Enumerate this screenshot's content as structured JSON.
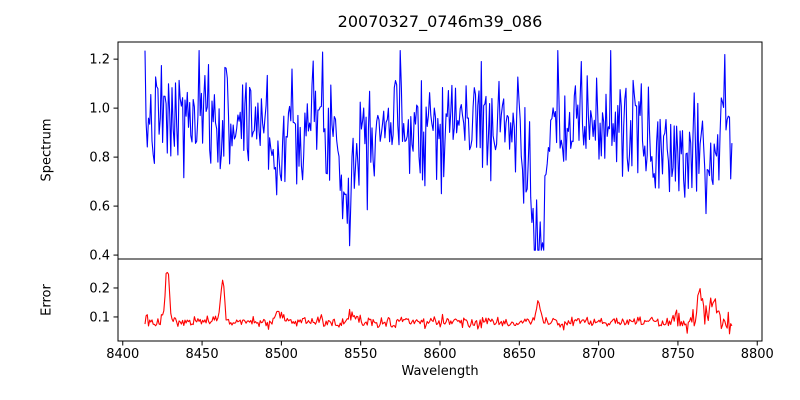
{
  "chart_data": {
    "type": "line",
    "title": "20070327_0746m39_086",
    "xlabel": "Wavelength",
    "xlim": [
      8397,
      8803
    ],
    "xticks": [
      8400,
      8450,
      8500,
      8550,
      8600,
      8650,
      8700,
      8750,
      8800
    ],
    "xtick_labels": [
      "8400",
      "8450",
      "8500",
      "8550",
      "8600",
      "8650",
      "8700",
      "8750",
      "8800"
    ],
    "legend": "none",
    "grid": false,
    "panels": [
      {
        "name": "spectrum",
        "ylabel": "Spectrum",
        "color": "#0000ff",
        "line_width": 1.1,
        "ylim": [
          0.384,
          1.27
        ],
        "yticks": [
          0.4,
          0.6,
          0.8,
          1.0,
          1.2
        ],
        "ytick_labels": [
          "0.4",
          "0.6",
          "0.8",
          "1.0",
          "1.2"
        ],
        "x_start": 8414,
        "x_end": 8784,
        "n_points": 500,
        "baseline": 0.95,
        "noise_std": 0.115,
        "seed": 7,
        "clip_min": 0.42,
        "clip_max": 1.235,
        "absorption_features": [
          {
            "center": 8498,
            "depth": 0.18,
            "width": 3
          },
          {
            "center": 8542,
            "depth": 0.3,
            "width": 4
          },
          {
            "center": 8662,
            "depth": 0.52,
            "width": 3.5
          },
          {
            "center": 8662,
            "depth": 0.1,
            "width": 12
          },
          {
            "center": 8745,
            "depth": 0.13,
            "width": 16
          },
          {
            "center": 8770,
            "depth": 0.18,
            "width": 2
          }
        ]
      },
      {
        "name": "error",
        "ylabel": "Error",
        "color": "#ff0000",
        "line_width": 1.1,
        "ylim": [
          0.017,
          0.3
        ],
        "yticks": [
          0.1,
          0.2
        ],
        "ytick_labels": [
          "0.1",
          "0.2"
        ],
        "x_start": 8414,
        "x_end": 8784,
        "n_points": 500,
        "baseline": 0.082,
        "noise_std": 0.01,
        "seed": 13,
        "clip_min": 0.042,
        "clip_max": 0.29,
        "noise_boost": {
          "from_x": 8748,
          "factor": 2.3
        },
        "spike_features": [
          {
            "center": 8428,
            "height": 0.2,
            "width": 1.2
          },
          {
            "center": 8463,
            "height": 0.14,
            "width": 1.2
          },
          {
            "center": 8498,
            "height": 0.035,
            "width": 2.0
          },
          {
            "center": 8545,
            "height": 0.03,
            "width": 2.0
          },
          {
            "center": 8662,
            "height": 0.065,
            "width": 1.5
          },
          {
            "center": 8764,
            "height": 0.115,
            "width": 1.5
          },
          {
            "center": 8772,
            "height": 0.06,
            "width": 1.5
          }
        ]
      }
    ]
  }
}
